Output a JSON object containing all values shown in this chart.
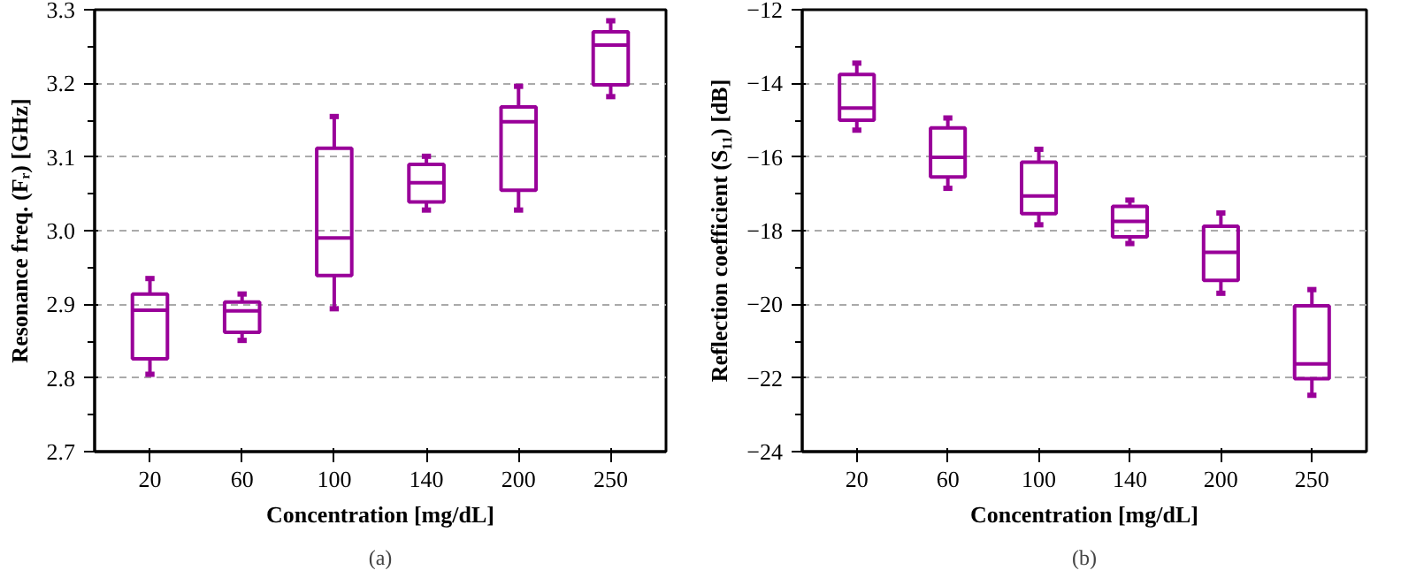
{
  "chart_data": [
    {
      "type": "box",
      "xlabel": "Concentration [mg/dL]",
      "ylabel": "Resonance freq. (Fᵣ) [GHz]",
      "annotations": [
        "(a)"
      ],
      "categories": [
        "20",
        "60",
        "100",
        "140",
        "200",
        "250"
      ],
      "color": "#990099",
      "ylim": [
        2.7,
        3.3
      ],
      "yticks": [
        2.7,
        2.8,
        2.9,
        {
          "value": 3,
          "label": "3.0"
        },
        3.1,
        3.2,
        3.3
      ],
      "grid": "y",
      "boxes": [
        {
          "low": 2.805,
          "q1": 2.826,
          "median": 2.892,
          "q3": 2.914,
          "high": 2.935
        },
        {
          "low": 2.851,
          "q1": 2.862,
          "median": 2.891,
          "q3": 2.903,
          "high": 2.914
        },
        {
          "low": 2.894,
          "q1": 2.939,
          "median": 2.99,
          "q3": 3.112,
          "high": 3.155
        },
        {
          "low": 3.028,
          "q1": 3.039,
          "median": 3.065,
          "q3": 3.09,
          "high": 3.101
        },
        {
          "low": 3.028,
          "q1": 3.055,
          "median": 3.148,
          "q3": 3.168,
          "high": 3.196
        },
        {
          "low": 3.182,
          "q1": 3.198,
          "median": 3.252,
          "q3": 3.27,
          "high": 3.285
        }
      ]
    },
    {
      "type": "box",
      "xlabel": "Concentration [mg/dL]",
      "ylabel": "Reflection coefficient (S₁₁) [dB]",
      "annotations": [
        "(b)"
      ],
      "categories": [
        "20",
        "60",
        "100",
        "140",
        "200",
        "250"
      ],
      "color": "#990099",
      "ylim": [
        -24,
        -12
      ],
      "yticks": [
        -24,
        -22,
        -20,
        -18,
        -16,
        -14,
        -12
      ],
      "grid": "y",
      "boxes": [
        {
          "low": -15.27,
          "q1": -15.0,
          "median": -14.67,
          "q3": -13.76,
          "high": -13.45
        },
        {
          "low": -16.85,
          "q1": -16.54,
          "median": -16.01,
          "q3": -15.21,
          "high": -14.94
        },
        {
          "low": -17.84,
          "q1": -17.54,
          "median": -17.06,
          "q3": -16.14,
          "high": -15.79
        },
        {
          "low": -18.35,
          "q1": -18.17,
          "median": -17.75,
          "q3": -17.34,
          "high": -17.17
        },
        {
          "low": -19.7,
          "q1": -19.35,
          "median": -18.59,
          "q3": -17.88,
          "high": -17.52
        },
        {
          "low": -22.47,
          "q1": -22.02,
          "median": -21.62,
          "q3": -20.04,
          "high": -19.6
        }
      ]
    }
  ]
}
